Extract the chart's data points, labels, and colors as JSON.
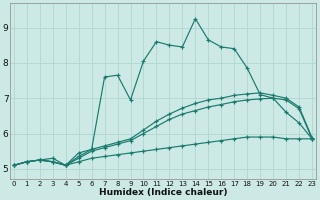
{
  "xlabel": "Humidex (Indice chaleur)",
  "xlim": [
    -0.3,
    23.3
  ],
  "ylim": [
    4.7,
    9.7
  ],
  "yticks": [
    5,
    6,
    7,
    8,
    9
  ],
  "xticks": [
    0,
    1,
    2,
    3,
    4,
    5,
    6,
    7,
    8,
    9,
    10,
    11,
    12,
    13,
    14,
    15,
    16,
    17,
    18,
    19,
    20,
    21,
    22,
    23
  ],
  "bg_color": "#cce9e5",
  "grid_color": "#b0d5d0",
  "line_color": "#1a7a6e",
  "lines": [
    {
      "x": [
        0,
        1,
        2,
        3,
        4,
        5,
        6,
        7,
        8,
        9,
        10,
        11,
        12,
        13,
        14,
        15,
        16,
        17,
        18,
        19,
        20,
        21,
        22,
        23
      ],
      "y": [
        5.1,
        5.2,
        5.25,
        5.2,
        5.1,
        5.2,
        5.3,
        5.35,
        5.4,
        5.45,
        5.5,
        5.55,
        5.6,
        5.65,
        5.7,
        5.75,
        5.8,
        5.85,
        5.9,
        5.9,
        5.9,
        5.85,
        5.85,
        5.85
      ]
    },
    {
      "x": [
        0,
        1,
        2,
        3,
        4,
        5,
        6,
        7,
        8,
        9,
        10,
        11,
        12,
        13,
        14,
        15,
        16,
        17,
        18,
        19,
        20,
        21,
        22,
        23
      ],
      "y": [
        5.1,
        5.2,
        5.25,
        5.2,
        5.1,
        5.3,
        5.5,
        5.6,
        5.7,
        5.8,
        6.0,
        6.2,
        6.4,
        6.55,
        6.65,
        6.75,
        6.82,
        6.9,
        6.95,
        6.98,
        7.0,
        6.95,
        6.7,
        5.85
      ]
    },
    {
      "x": [
        0,
        1,
        2,
        3,
        4,
        5,
        6,
        7,
        8,
        9,
        10,
        11,
        12,
        13,
        14,
        15,
        16,
        17,
        18,
        19,
        20,
        21,
        22,
        23
      ],
      "y": [
        5.1,
        5.2,
        5.25,
        5.2,
        5.1,
        5.35,
        5.55,
        5.65,
        5.75,
        5.85,
        6.1,
        6.35,
        6.55,
        6.72,
        6.85,
        6.95,
        7.0,
        7.08,
        7.12,
        7.15,
        7.08,
        7.0,
        6.75,
        5.88
      ]
    },
    {
      "x": [
        0,
        1,
        2,
        3,
        4,
        5,
        6,
        7,
        8,
        9,
        10,
        11,
        12,
        13,
        14,
        15,
        16,
        17,
        18,
        19,
        20,
        21,
        22,
        23
      ],
      "y": [
        5.1,
        5.2,
        5.25,
        5.3,
        5.1,
        5.45,
        5.55,
        7.6,
        7.65,
        6.95,
        8.05,
        8.6,
        8.5,
        8.45,
        9.25,
        8.65,
        8.45,
        8.4,
        7.85,
        7.1,
        7.0,
        6.6,
        6.3,
        5.85
      ]
    }
  ]
}
